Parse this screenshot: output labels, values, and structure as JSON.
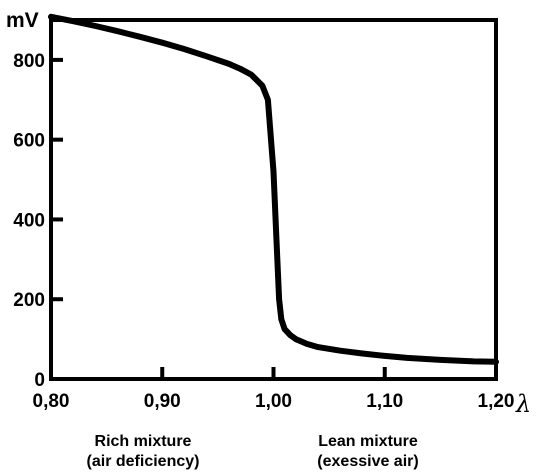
{
  "chart_data": {
    "type": "line",
    "title": "",
    "xlabel": "λ",
    "ylabel": "mV",
    "xlim": [
      0.8,
      1.2
    ],
    "ylim": [
      0,
      900
    ],
    "x_tick_labels": [
      "0,80",
      "0,90",
      "1,00",
      "1,10",
      "1,20"
    ],
    "x_ticks": [
      0.8,
      0.9,
      1.0,
      1.1,
      1.2
    ],
    "y_tick_labels": [
      "0",
      "200",
      "400",
      "600",
      "800"
    ],
    "y_ticks": [
      0,
      200,
      400,
      600,
      800
    ],
    "grid": false,
    "series": [
      {
        "x": [
          0.8,
          0.82,
          0.84,
          0.86,
          0.88,
          0.9,
          0.92,
          0.94,
          0.96,
          0.97,
          0.98,
          0.99,
          0.995,
          1.0,
          1.003,
          1.005,
          1.007,
          1.01,
          1.015,
          1.02,
          1.03,
          1.04,
          1.06,
          1.08,
          1.1,
          1.12,
          1.15,
          1.18,
          1.2
        ],
        "values": [
          908,
          897,
          885,
          872,
          858,
          843,
          827,
          809,
          790,
          778,
          763,
          735,
          700,
          520,
          330,
          200,
          150,
          125,
          110,
          100,
          88,
          80,
          71,
          64,
          58,
          53,
          48,
          44,
          43
        ]
      }
    ],
    "color": "#000000"
  },
  "annotations": {
    "rich": {
      "line1": "Rich mixture",
      "line2": "(air deficiency)"
    },
    "lean": {
      "line1": "Lean mixture",
      "line2": "(exessive air)"
    }
  }
}
